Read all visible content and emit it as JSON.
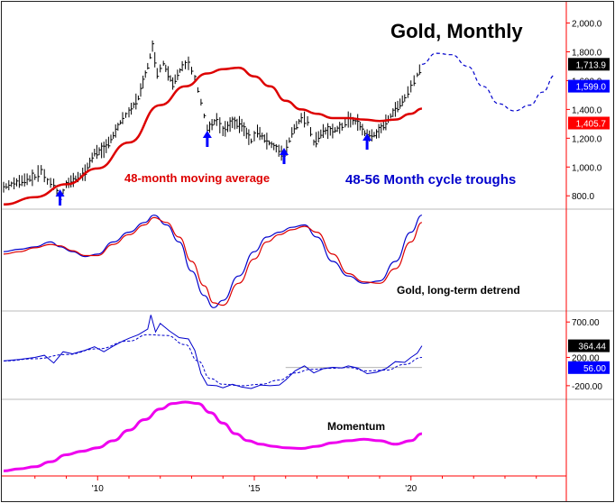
{
  "chart_data": [
    {
      "panel": "price",
      "type": "bar",
      "title": "Gold, Monthly",
      "x_axis_ticks": [
        "'10",
        "'15",
        "'20"
      ],
      "y_axis_ticks": [
        "2,000.0",
        "1,800.0",
        "1,600.0",
        "1,400.0",
        "1,200.0",
        "1,000.0",
        "800.0"
      ],
      "ylim": [
        720,
        2110
      ],
      "price_tag": {
        "value": "1,713.9",
        "y": 1713.9,
        "color": "#000000"
      },
      "projection_tag": {
        "value": "1,599.0",
        "y": 1599.0,
        "color": "#0000ff"
      },
      "ma_tag": {
        "value": "1,405.7",
        "y": 1405.7,
        "color": "#ff0000"
      },
      "annotation_ma": "48-month moving average",
      "annotation_cycle": "48-56 Month cycle troughs",
      "trough_dates": [
        2008.8,
        2013.5,
        2015.95,
        2018.6
      ],
      "ohlc_series": {
        "name": "Gold",
        "color": "#000000",
        "points": [
          [
            2007.0,
            860
          ],
          [
            2007.5,
            900
          ],
          [
            2008.0,
            930
          ],
          [
            2008.2,
            980
          ],
          [
            2008.4,
            900
          ],
          [
            2008.6,
            880
          ],
          [
            2008.8,
            780
          ],
          [
            2009.0,
            880
          ],
          [
            2009.3,
            920
          ],
          [
            2009.6,
            960
          ],
          [
            2009.9,
            1100
          ],
          [
            2010.2,
            1120
          ],
          [
            2010.5,
            1220
          ],
          [
            2010.8,
            1340
          ],
          [
            2011.0,
            1380
          ],
          [
            2011.3,
            1480
          ],
          [
            2011.6,
            1700
          ],
          [
            2011.75,
            1840
          ],
          [
            2011.9,
            1650
          ],
          [
            2012.1,
            1720
          ],
          [
            2012.4,
            1580
          ],
          [
            2012.7,
            1700
          ],
          [
            2012.9,
            1720
          ],
          [
            2013.1,
            1620
          ],
          [
            2013.3,
            1450
          ],
          [
            2013.5,
            1260
          ],
          [
            2013.8,
            1330
          ],
          [
            2014.0,
            1250
          ],
          [
            2014.3,
            1310
          ],
          [
            2014.6,
            1290
          ],
          [
            2014.9,
            1180
          ],
          [
            2015.1,
            1250
          ],
          [
            2015.4,
            1180
          ],
          [
            2015.7,
            1130
          ],
          [
            2015.95,
            1080
          ],
          [
            2016.2,
            1240
          ],
          [
            2016.5,
            1340
          ],
          [
            2016.7,
            1320
          ],
          [
            2016.9,
            1170
          ],
          [
            2017.2,
            1250
          ],
          [
            2017.5,
            1250
          ],
          [
            2017.8,
            1280
          ],
          [
            2018.0,
            1330
          ],
          [
            2018.3,
            1310
          ],
          [
            2018.6,
            1210
          ],
          [
            2018.9,
            1230
          ],
          [
            2019.2,
            1310
          ],
          [
            2019.5,
            1400
          ],
          [
            2019.8,
            1480
          ],
          [
            2020.0,
            1560
          ],
          [
            2020.2,
            1640
          ],
          [
            2020.35,
            1713.9
          ]
        ]
      },
      "moving_average": {
        "name": "48-month moving average",
        "color": "#dd0000",
        "points": [
          [
            2007.0,
            740
          ],
          [
            2008.0,
            790
          ],
          [
            2009.0,
            880
          ],
          [
            2010.0,
            990
          ],
          [
            2011.0,
            1170
          ],
          [
            2012.0,
            1430
          ],
          [
            2012.8,
            1560
          ],
          [
            2013.5,
            1650
          ],
          [
            2014.0,
            1680
          ],
          [
            2014.5,
            1690
          ],
          [
            2015.0,
            1630
          ],
          [
            2015.5,
            1560
          ],
          [
            2016.0,
            1460
          ],
          [
            2016.5,
            1400
          ],
          [
            2017.0,
            1370
          ],
          [
            2017.5,
            1340
          ],
          [
            2018.0,
            1340
          ],
          [
            2018.5,
            1330
          ],
          [
            2019.0,
            1320
          ],
          [
            2019.5,
            1330
          ],
          [
            2020.0,
            1370
          ],
          [
            2020.35,
            1405.7
          ]
        ]
      },
      "projection": {
        "name": "projection",
        "color": "#0000cc",
        "points": [
          [
            2020.35,
            1713.9
          ],
          [
            2020.8,
            1790
          ],
          [
            2021.3,
            1780
          ],
          [
            2021.8,
            1700
          ],
          [
            2022.3,
            1560
          ],
          [
            2022.8,
            1440
          ],
          [
            2023.3,
            1390
          ],
          [
            2023.8,
            1430
          ],
          [
            2024.2,
            1520
          ],
          [
            2024.6,
            1640
          ]
        ]
      }
    },
    {
      "panel": "detrend",
      "type": "line",
      "title": "Gold, long-term detrend",
      "ylim": [
        -100,
        100
      ],
      "series": [
        {
          "color": "#0000cc",
          "values": [
            [
              2007.0,
              20
            ],
            [
              2007.5,
              25
            ],
            [
              2008.0,
              30
            ],
            [
              2008.5,
              40
            ],
            [
              2008.8,
              30
            ],
            [
              2009.2,
              20
            ],
            [
              2009.6,
              10
            ],
            [
              2010.0,
              15
            ],
            [
              2010.5,
              40
            ],
            [
              2011.0,
              60
            ],
            [
              2011.5,
              80
            ],
            [
              2011.8,
              95
            ],
            [
              2012.2,
              75
            ],
            [
              2012.6,
              40
            ],
            [
              2013.0,
              -20
            ],
            [
              2013.4,
              -70
            ],
            [
              2013.7,
              -95
            ],
            [
              2014.0,
              -80
            ],
            [
              2014.5,
              -30
            ],
            [
              2015.0,
              20
            ],
            [
              2015.4,
              50
            ],
            [
              2015.8,
              60
            ],
            [
              2016.2,
              70
            ],
            [
              2016.6,
              75
            ],
            [
              2017.0,
              50
            ],
            [
              2017.5,
              0
            ],
            [
              2018.0,
              -30
            ],
            [
              2018.5,
              -45
            ],
            [
              2019.0,
              -40
            ],
            [
              2019.5,
              0
            ],
            [
              2020.0,
              60
            ],
            [
              2020.35,
              95
            ]
          ]
        },
        {
          "color": "#dd0000",
          "values": [
            [
              2007.0,
              15
            ],
            [
              2007.5,
              20
            ],
            [
              2008.0,
              28
            ],
            [
              2008.5,
              35
            ],
            [
              2008.8,
              32
            ],
            [
              2009.2,
              22
            ],
            [
              2009.6,
              12
            ],
            [
              2010.0,
              12
            ],
            [
              2010.5,
              35
            ],
            [
              2011.0,
              55
            ],
            [
              2011.5,
              75
            ],
            [
              2011.8,
              90
            ],
            [
              2012.2,
              80
            ],
            [
              2012.6,
              50
            ],
            [
              2013.0,
              0
            ],
            [
              2013.4,
              -50
            ],
            [
              2013.7,
              -85
            ],
            [
              2014.0,
              -90
            ],
            [
              2014.5,
              -45
            ],
            [
              2015.0,
              5
            ],
            [
              2015.4,
              40
            ],
            [
              2015.8,
              55
            ],
            [
              2016.2,
              65
            ],
            [
              2016.6,
              72
            ],
            [
              2017.0,
              60
            ],
            [
              2017.5,
              15
            ],
            [
              2018.0,
              -25
            ],
            [
              2018.5,
              -42
            ],
            [
              2019.0,
              -45
            ],
            [
              2019.5,
              -15
            ],
            [
              2020.0,
              40
            ],
            [
              2020.35,
              80
            ]
          ]
        }
      ]
    },
    {
      "panel": "oscillator",
      "type": "line",
      "y_axis_ticks": [
        "700.00",
        "200.00",
        "-200.00"
      ],
      "ylim": [
        -380,
        830
      ],
      "value_tag": {
        "value": "364.44",
        "y": 364.44,
        "color": "#000000"
      },
      "zero_tag": {
        "value": "56.00",
        "y": 56,
        "color": "#0000ff"
      },
      "series": [
        {
          "color": "#0000cc",
          "values": [
            [
              2007.0,
              150
            ],
            [
              2007.5,
              170
            ],
            [
              2008.0,
              200
            ],
            [
              2008.3,
              230
            ],
            [
              2008.6,
              120
            ],
            [
              2008.9,
              280
            ],
            [
              2009.2,
              250
            ],
            [
              2009.6,
              300
            ],
            [
              2009.9,
              350
            ],
            [
              2010.2,
              280
            ],
            [
              2010.5,
              360
            ],
            [
              2010.8,
              430
            ],
            [
              2011.0,
              470
            ],
            [
              2011.3,
              520
            ],
            [
              2011.6,
              600
            ],
            [
              2011.7,
              800
            ],
            [
              2011.85,
              560
            ],
            [
              2012.0,
              680
            ],
            [
              2012.3,
              570
            ],
            [
              2012.6,
              480
            ],
            [
              2012.9,
              460
            ],
            [
              2013.1,
              300
            ],
            [
              2013.3,
              -30
            ],
            [
              2013.5,
              -190
            ],
            [
              2013.8,
              -200
            ],
            [
              2014.0,
              -230
            ],
            [
              2014.3,
              -180
            ],
            [
              2014.6,
              -220
            ],
            [
              2014.9,
              -240
            ],
            [
              2015.2,
              -190
            ],
            [
              2015.5,
              -200
            ],
            [
              2015.8,
              -190
            ],
            [
              2016.0,
              -120
            ],
            [
              2016.3,
              10
            ],
            [
              2016.6,
              80
            ],
            [
              2016.9,
              -20
            ],
            [
              2017.2,
              40
            ],
            [
              2017.5,
              60
            ],
            [
              2017.8,
              50
            ],
            [
              2018.0,
              80
            ],
            [
              2018.3,
              50
            ],
            [
              2018.6,
              -30
            ],
            [
              2018.9,
              -10
            ],
            [
              2019.2,
              40
            ],
            [
              2019.5,
              140
            ],
            [
              2019.8,
              130
            ],
            [
              2020.0,
              200
            ],
            [
              2020.2,
              260
            ],
            [
              2020.35,
              364.44
            ]
          ]
        },
        {
          "color": "#0000cc",
          "dashed": true,
          "values": [
            [
              2007.0,
              150
            ],
            [
              2008.0,
              180
            ],
            [
              2009.0,
              240
            ],
            [
              2010.0,
              320
            ],
            [
              2011.0,
              430
            ],
            [
              2011.6,
              520
            ],
            [
              2012.2,
              510
            ],
            [
              2012.8,
              380
            ],
            [
              2013.2,
              150
            ],
            [
              2013.6,
              -100
            ],
            [
              2014.0,
              -180
            ],
            [
              2014.6,
              -200
            ],
            [
              2015.2,
              -180
            ],
            [
              2015.8,
              -120
            ],
            [
              2016.3,
              -20
            ],
            [
              2016.8,
              30
            ],
            [
              2017.4,
              45
            ],
            [
              2018.0,
              55
            ],
            [
              2018.6,
              10
            ],
            [
              2019.2,
              20
            ],
            [
              2019.8,
              100
            ],
            [
              2020.35,
              200
            ]
          ]
        }
      ]
    },
    {
      "panel": "momentum",
      "type": "line",
      "title": "Momentum",
      "ylim": [
        0,
        100
      ],
      "series": [
        {
          "color": "#ee00ee",
          "values": [
            [
              2007.0,
              2
            ],
            [
              2007.5,
              5
            ],
            [
              2008.0,
              8
            ],
            [
              2008.5,
              15
            ],
            [
              2009.0,
              25
            ],
            [
              2009.5,
              30
            ],
            [
              2010.0,
              35
            ],
            [
              2010.5,
              45
            ],
            [
              2011.0,
              60
            ],
            [
              2011.5,
              75
            ],
            [
              2012.0,
              90
            ],
            [
              2012.4,
              98
            ],
            [
              2012.8,
              100
            ],
            [
              2013.2,
              98
            ],
            [
              2013.6,
              85
            ],
            [
              2014.0,
              70
            ],
            [
              2014.4,
              55
            ],
            [
              2014.8,
              45
            ],
            [
              2015.2,
              40
            ],
            [
              2015.6,
              37
            ],
            [
              2016.0,
              35
            ],
            [
              2016.5,
              34
            ],
            [
              2017.0,
              37
            ],
            [
              2017.5,
              42
            ],
            [
              2018.0,
              45
            ],
            [
              2018.5,
              47
            ],
            [
              2019.0,
              45
            ],
            [
              2019.5,
              40
            ],
            [
              2020.0,
              45
            ],
            [
              2020.35,
              55
            ]
          ]
        }
      ]
    }
  ],
  "colors": {
    "frame": "#ff0000",
    "separator": "#bbbbbb",
    "title": "#000000",
    "ma_label": "#dd0000",
    "cycle_label": "#0000cc",
    "arrow": "#0000ff"
  },
  "icons": {
    "trough_marker": "up-arrow-icon"
  }
}
